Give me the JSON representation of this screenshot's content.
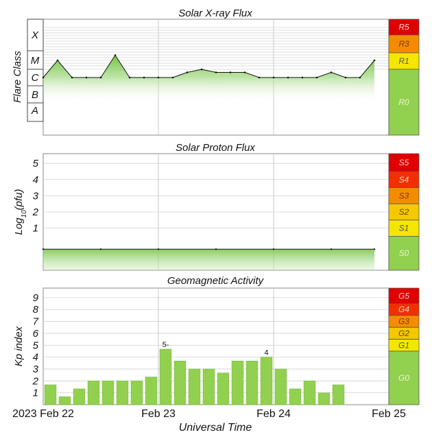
{
  "chart_data": [
    {
      "type": "area",
      "title": "Solar X-ray Flux",
      "ylabel": "Flare Class",
      "y_scale": "log",
      "class_labels": [
        "X",
        "M",
        "C",
        "B",
        "A"
      ],
      "x_ticks": [
        "2023 Feb 22",
        "Feb 23",
        "Feb 24",
        "Feb 25"
      ],
      "xlabel": "Universal Time",
      "series": [
        {
          "x": [
            "Feb 22 00:00",
            "Feb 22 03:00",
            "Feb 22 06:00",
            "Feb 22 09:00",
            "Feb 22 12:00",
            "Feb 22 15:00",
            "Feb 22 18:00",
            "Feb 22 21:00",
            "Feb 23 00:00",
            "Feb 23 03:00",
            "Feb 23 06:00",
            "Feb 23 09:00",
            "Feb 23 12:00",
            "Feb 23 15:00",
            "Feb 23 18:00",
            "Feb 23 21:00",
            "Feb 24 00:00",
            "Feb 24 03:00",
            "Feb 24 06:00",
            "Feb 24 09:00",
            "Feb 24 12:00",
            "Feb 24 15:00",
            "Feb 24 18:00",
            "Feb 24 21:00"
          ],
          "y": [
            "C1",
            "M1",
            "C1",
            "C1",
            "C1",
            "M2",
            "C1",
            "C1",
            "C1",
            "C1",
            "C2",
            "C3",
            "C2",
            "C2",
            "C2",
            "C1",
            "C1",
            "C1",
            "C1",
            "C1",
            "C2",
            "C1",
            "C1",
            "M1"
          ]
        }
      ],
      "scale_levels": [
        {
          "label": "R5",
          "color": "#e00000"
        },
        {
          "label": "R3",
          "color": "#f58c00"
        },
        {
          "label": "R1",
          "color": "#f5e600"
        },
        {
          "label": "R0",
          "color": "#92d050"
        }
      ]
    },
    {
      "type": "area",
      "title": "Solar Proton Flux",
      "ylabel": "Log10(pfu)",
      "y_ticks": [
        1,
        2,
        3,
        4,
        5
      ],
      "ylim": [
        -1.6,
        5.6
      ],
      "x_ticks": [
        "2023 Feb 22",
        "Feb 23",
        "Feb 24",
        "Feb 25"
      ],
      "series": [
        {
          "x": [
            "Feb 22 00:00",
            "Feb 22 12:00",
            "Feb 23 00:00",
            "Feb 23 12:00",
            "Feb 24 00:00",
            "Feb 24 12:00",
            "Feb 24 21:00"
          ],
          "y": [
            -0.3,
            -0.3,
            -0.3,
            -0.3,
            -0.3,
            -0.3,
            -0.3
          ]
        }
      ],
      "scale_levels": [
        {
          "label": "S5",
          "color": "#e00000"
        },
        {
          "label": "S4",
          "color": "#f03000"
        },
        {
          "label": "S3",
          "color": "#f58c00"
        },
        {
          "label": "S2",
          "color": "#f5c800"
        },
        {
          "label": "S1",
          "color": "#f5e600"
        },
        {
          "label": "S0",
          "color": "#92d050"
        }
      ]
    },
    {
      "type": "bar",
      "title": "Geomagnetic Activity",
      "ylabel": "Kp index",
      "xlabel": "Universal Time",
      "ylim": [
        0,
        9.8
      ],
      "y_ticks": [
        1,
        2,
        3,
        4,
        5,
        6,
        7,
        8,
        9
      ],
      "x_ticks": [
        "2023 Feb 22",
        "Feb 23",
        "Feb 24",
        "Feb 25"
      ],
      "categories": [
        "Feb 22 00-03",
        "Feb 22 03-06",
        "Feb 22 06-09",
        "Feb 22 09-12",
        "Feb 22 12-15",
        "Feb 22 15-18",
        "Feb 22 18-21",
        "Feb 22 21-24",
        "Feb 23 00-03",
        "Feb 23 03-06",
        "Feb 23 06-09",
        "Feb 23 09-12",
        "Feb 23 12-15",
        "Feb 23 15-18",
        "Feb 23 18-21",
        "Feb 23 21-24",
        "Feb 24 00-03",
        "Feb 24 03-06",
        "Feb 24 06-09",
        "Feb 24 09-12",
        "Feb 24 12-15",
        "Feb 24 15-18"
      ],
      "values": [
        1.67,
        0.67,
        1.33,
        2.0,
        2.0,
        2.0,
        2.0,
        2.33,
        4.67,
        3.67,
        3.0,
        3.0,
        2.67,
        3.67,
        3.67,
        4.0,
        3.0,
        1.33,
        2.0,
        1.0,
        1.67,
        0
      ],
      "bar_labels": {
        "8": "5-",
        "15": "4"
      },
      "scale_levels": [
        {
          "label": "G5",
          "color": "#e00000"
        },
        {
          "label": "G4",
          "color": "#f03000"
        },
        {
          "label": "G3",
          "color": "#f58c00"
        },
        {
          "label": "G2",
          "color": "#f5c800"
        },
        {
          "label": "G1",
          "color": "#f5e600"
        },
        {
          "label": "G0",
          "color": "#92d050"
        }
      ]
    }
  ]
}
